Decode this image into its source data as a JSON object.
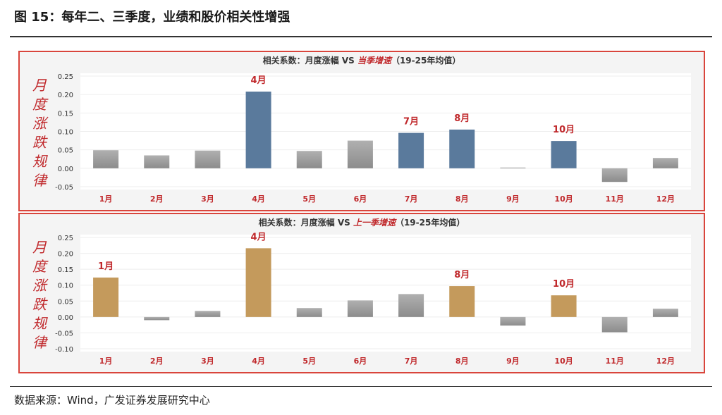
{
  "figure_title": "图 15：每年二、三季度，业绩和股价相关性增强",
  "source": "数据来源：Wind，广发证券发展研究中心",
  "colors": {
    "highlight_top": "#5a7a9c",
    "highlight_bottom": "#c49a5c",
    "other": "#a6a6a6",
    "label_red": "#c0282b",
    "frame": "#d9453c"
  },
  "chart_data": [
    {
      "type": "bar",
      "title_prefix": "相关系数：月度涨幅 VS ",
      "title_emph": "当季增速",
      "title_suffix": "（19-25年均值）",
      "side_label": "月度涨跌规律",
      "categories": [
        "1月",
        "2月",
        "3月",
        "4月",
        "5月",
        "6月",
        "7月",
        "8月",
        "9月",
        "10月",
        "11月",
        "12月"
      ],
      "values": [
        0.049,
        0.035,
        0.048,
        0.208,
        0.047,
        0.075,
        0.096,
        0.105,
        0.002,
        0.074,
        -0.037,
        0.028
      ],
      "highlighted": [
        "4月",
        "7月",
        "8月",
        "10月"
      ],
      "yticks": [
        "0.25",
        "0.20",
        "0.15",
        "0.10",
        "0.05",
        "0.00",
        "-0.05"
      ],
      "ylim": [
        -0.05,
        0.25
      ],
      "grid": true
    },
    {
      "type": "bar",
      "title_prefix": "相关系数：月度涨幅 VS ",
      "title_emph": "上一季增速",
      "title_suffix": "（19-25年均值）",
      "side_label": "月度涨跌规律",
      "categories": [
        "1月",
        "2月",
        "3月",
        "4月",
        "5月",
        "6月",
        "7月",
        "8月",
        "9月",
        "10月",
        "11月",
        "12月"
      ],
      "values": [
        0.124,
        -0.01,
        0.019,
        0.216,
        0.028,
        0.052,
        0.072,
        0.097,
        -0.027,
        0.068,
        -0.048,
        0.026
      ],
      "highlighted": [
        "1月",
        "4月",
        "8月",
        "10月"
      ],
      "yticks": [
        "0.25",
        "0.20",
        "0.15",
        "0.10",
        "0.05",
        "0.00",
        "-0.05",
        "-0.10"
      ],
      "ylim": [
        -0.1,
        0.25
      ],
      "grid": true
    }
  ]
}
